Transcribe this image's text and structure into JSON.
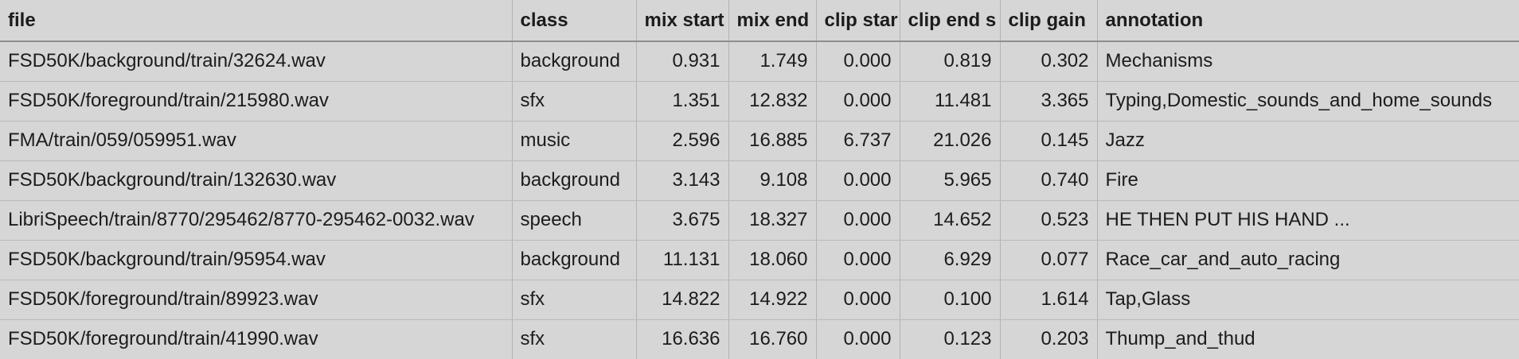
{
  "table": {
    "columns": [
      "file",
      "class",
      "mix start",
      "mix end",
      "clip star",
      "clip end s",
      "clip gain",
      "annotation"
    ],
    "rows": [
      [
        "FSD50K/background/train/32624.wav",
        "background",
        "0.931",
        "1.749",
        "0.000",
        "0.819",
        "0.302",
        "Mechanisms"
      ],
      [
        "FSD50K/foreground/train/215980.wav",
        "sfx",
        "1.351",
        "12.832",
        "0.000",
        "11.481",
        "3.365",
        "Typing,Domestic_sounds_and_home_sounds"
      ],
      [
        "FMA/train/059/059951.wav",
        "music",
        "2.596",
        "16.885",
        "6.737",
        "21.026",
        "0.145",
        "Jazz"
      ],
      [
        "FSD50K/background/train/132630.wav",
        "background",
        "3.143",
        "9.108",
        "0.000",
        "5.965",
        "0.740",
        "Fire"
      ],
      [
        "LibriSpeech/train/8770/295462/8770-295462-0032.wav",
        "speech",
        "3.675",
        "18.327",
        "0.000",
        "14.652",
        "0.523",
        "HE THEN PUT HIS HAND ..."
      ],
      [
        "FSD50K/background/train/95954.wav",
        "background",
        "11.131",
        "18.060",
        "0.000",
        "6.929",
        "0.077",
        "Race_car_and_auto_racing"
      ],
      [
        "FSD50K/foreground/train/89923.wav",
        "sfx",
        "14.822",
        "14.922",
        "0.000",
        "0.100",
        "1.614",
        "Tap,Glass"
      ],
      [
        "FSD50K/foreground/train/41990.wav",
        "sfx",
        "16.636",
        "16.760",
        "0.000",
        "0.123",
        "0.203",
        "Thump_and_thud"
      ]
    ]
  }
}
